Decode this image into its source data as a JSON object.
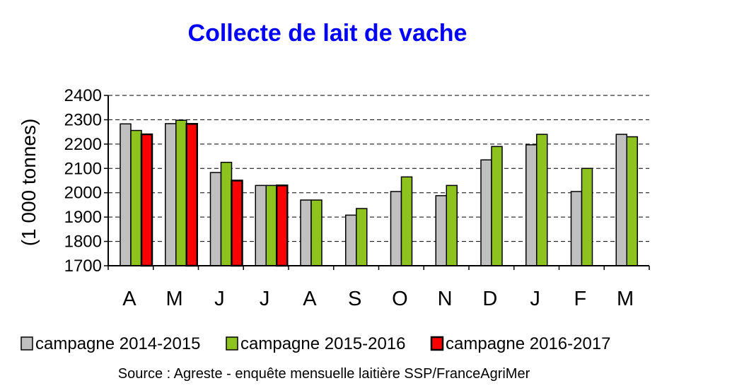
{
  "chart_data": {
    "type": "bar",
    "title": "Collecte de lait de vache",
    "ylabel": "(1 000 tonnes)",
    "xlabel": "",
    "ylim": [
      1700,
      2400
    ],
    "yticks": [
      1700,
      1800,
      1900,
      2000,
      2100,
      2200,
      2300,
      2400
    ],
    "grid": true,
    "legend_position": "bottom",
    "categories": [
      "A",
      "M",
      "J",
      "J",
      "A",
      "S",
      "O",
      "N",
      "D",
      "J",
      "F",
      "M"
    ],
    "series": [
      {
        "name": "campagne 2014-2015",
        "color": "#c0c0c0",
        "values": [
          2283,
          2284,
          2083,
          2030,
          1970,
          1908,
          2005,
          1988,
          2135,
          2197,
          2005,
          2240
        ]
      },
      {
        "name": "campagne 2015-2016",
        "color": "#8ec21f",
        "values": [
          2256,
          2298,
          2125,
          2030,
          1970,
          1935,
          2065,
          2030,
          2190,
          2240,
          2100,
          2230
        ]
      },
      {
        "name": "campagne 2016-2017",
        "color": "#ff0000",
        "values": [
          2240,
          2283,
          2050,
          2030,
          null,
          null,
          null,
          null,
          null,
          null,
          null,
          null
        ]
      }
    ],
    "title_color": "#0000ff",
    "source": "Source : Agreste - enquête mensuelle laitière SSP/FranceAgriMer"
  }
}
